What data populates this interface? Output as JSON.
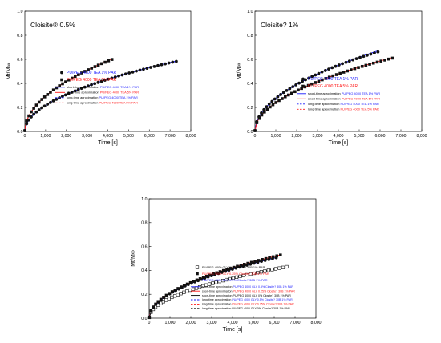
{
  "colors": {
    "blue": "#1a1aff",
    "red": "#ff1a1a",
    "black": "#000000"
  },
  "chart_data": [
    {
      "type": "scatter",
      "title": "Cloisite® 0.5%",
      "xlabel": "Time [s]",
      "ylabel": "Mt/M∞",
      "xlim": [
        0,
        8000
      ],
      "ylim": [
        0,
        1.0
      ],
      "xticks": [
        0,
        1000,
        2000,
        3000,
        4000,
        5000,
        6000,
        7000,
        8000
      ],
      "xtick_labels": [
        "0",
        "1,000",
        "2,000",
        "3,000",
        "4,000",
        "5,000",
        "6,000",
        "7,000",
        "8,000"
      ],
      "yticks": [
        0,
        0.2,
        0.4,
        0.6,
        0.8,
        1.0
      ],
      "ytick_labels": [
        "0.0",
        "0.2",
        "0.4",
        "0.6",
        "0.8",
        "1.0"
      ],
      "legend": [
        {
          "text": "PU/PEG 4000 TEA 1% PAR",
          "color": "#1a1aff",
          "marker": "circle"
        },
        {
          "text": "PU/PEG 4000 TEA 5% PAR",
          "color": "#ff1a1a",
          "marker": "square"
        },
        {
          "prefix": "short-time aproximation ",
          "text": "PU/PEG 4000 TEA 1% PAR",
          "color": "#1a1aff",
          "line": "solid"
        },
        {
          "prefix": "short-time aproximation ",
          "text": "PU/PEG 4000 TEA 5% PAR",
          "color": "#ff1a1a",
          "line": "solid"
        },
        {
          "prefix": "long-time aproximation ",
          "text": "PU/PEG 4000 TEA 1% PAR",
          "color": "#1a1aff",
          "line": "dashed"
        },
        {
          "prefix": "long-time aproximation ",
          "text": "PU/PEG 4000 TEA 5% PAR",
          "color": "#ff1a1a",
          "line": "dashed"
        }
      ],
      "series": [
        {
          "marker": "circle",
          "color": "#000000",
          "D": 3.7e-05,
          "tmax": 7300,
          "n": 48
        },
        {
          "marker": "square",
          "color": "#000000",
          "D": 6.8e-05,
          "tmax": 4200,
          "n": 30
        },
        {
          "line": "solid",
          "color": "#1a1aff",
          "D": 3.7e-05,
          "fn": "short",
          "tmax": 7300
        },
        {
          "line": "solid",
          "color": "#ff1a1a",
          "D": 6.8e-05,
          "fn": "short",
          "tmax": 4200
        },
        {
          "line": "dashed",
          "color": "#1a1aff",
          "D": 3.7e-05,
          "fn": "long",
          "tmax": 7300
        },
        {
          "line": "dashed",
          "color": "#ff1a1a",
          "D": 6.8e-05,
          "fn": "long",
          "tmax": 4200
        }
      ]
    },
    {
      "type": "scatter",
      "title": "Cloisite? 1%",
      "xlabel": "Time [s]",
      "ylabel": "Mt/M∞",
      "xlim": [
        0,
        8000
      ],
      "ylim": [
        0,
        1.0
      ],
      "xticks": [
        0,
        1000,
        2000,
        3000,
        4000,
        5000,
        6000,
        7000,
        8000
      ],
      "xtick_labels": [
        "0",
        "1,000",
        "2,000",
        "3,000",
        "4,000",
        "5,000",
        "6,000",
        "7,000",
        "8,000"
      ],
      "yticks": [
        0,
        0.2,
        0.4,
        0.6,
        0.8,
        1.0
      ],
      "ytick_labels": [
        "0.0",
        "0.2",
        "0.4",
        "0.6",
        "0.8",
        "1.0"
      ],
      "legend": [
        {
          "text": "PU/PEG 4000 TEA 1% PAR",
          "color": "#1a1aff",
          "marker": "circle"
        },
        {
          "text": "PU/PEG 4000 TEA 5% PAR",
          "color": "#ff1a1a",
          "marker": "square"
        },
        {
          "prefix": "short-time aproximation ",
          "text": "PU/PEG 4000 TEA 1% PAR",
          "color": "#1a1aff",
          "line": "solid"
        },
        {
          "prefix": "short-time aproximation ",
          "text": "PU/PEG 4000 TEA 5% PAR",
          "color": "#ff1a1a",
          "line": "solid"
        },
        {
          "prefix": "long-time aproximation ",
          "text": "PU/PEG 4000 TEA 1% PAR",
          "color": "#1a1aff",
          "line": "dashed"
        },
        {
          "prefix": "long-time aproximation ",
          "text": "PU/PEG 4000 TEA 5% PAR",
          "color": "#ff1a1a",
          "line": "dashed"
        }
      ],
      "series": [
        {
          "marker": "circle",
          "color": "#000000",
          "D": 6e-05,
          "tmax": 5900,
          "n": 40
        },
        {
          "marker": "square",
          "color": "#000000",
          "D": 4.5e-05,
          "tmax": 6600,
          "n": 42
        },
        {
          "line": "solid",
          "color": "#1a1aff",
          "D": 6e-05,
          "fn": "short",
          "tmax": 5900
        },
        {
          "line": "solid",
          "color": "#ff1a1a",
          "D": 4.5e-05,
          "fn": "short",
          "tmax": 6600
        },
        {
          "line": "dashed",
          "color": "#1a1aff",
          "D": 6e-05,
          "fn": "long",
          "tmax": 5900
        },
        {
          "line": "dashed",
          "color": "#ff1a1a",
          "D": 4.5e-05,
          "fn": "long",
          "tmax": 6600
        }
      ]
    },
    {
      "type": "scatter",
      "title": "",
      "xlabel": "Time [s]",
      "ylabel": "Mt/M∞",
      "xlim": [
        0,
        8000
      ],
      "ylim": [
        0,
        1.0
      ],
      "xticks": [
        0,
        1000,
        2000,
        3000,
        4000,
        5000,
        6000,
        7000,
        8000
      ],
      "xtick_labels": [
        "0",
        "1,000",
        "2,000",
        "3,000",
        "4,000",
        "5,000",
        "6,000",
        "7,000",
        "8,000"
      ],
      "yticks": [
        0,
        0.2,
        0.4,
        0.6,
        0.8,
        1.0
      ],
      "ytick_labels": [
        "0.0",
        "0.2",
        "0.4",
        "0.6",
        "0.8",
        "1.0"
      ],
      "legend": [
        {
          "text": "PU/PEG 4000 GLY 0% Closite? 30B 1% PAR",
          "color": "#000000",
          "marker": "open-square"
        },
        {
          "text": "PU/PEG 4000 GLY 0.25% Closite? 30B 1% PAR",
          "color": "#ff1a1a",
          "marker": "square"
        },
        {
          "text": "PU/PEG 4000 GLY 0.5% Closite? 30B 1% PAR",
          "color": "#1a1aff",
          "marker": "circle"
        },
        {
          "prefix": "short-time aproximation ",
          "text": "PU/PEG 4000 GLY 0.5% Closite? 30B 1% PAR",
          "color": "#1a1aff",
          "line": "solid"
        },
        {
          "prefix": "short-time aproximation ",
          "text": "PU/PEG 4000 GLY 0.25% Closite? 30B 1% PAR",
          "color": "#ff1a1a",
          "line": "solid"
        },
        {
          "prefix": "short-time aproximation ",
          "text": "PU/PEG 4000 GLY 0% Closite? 30B 1% PAR",
          "color": "#000000",
          "line": "solid"
        },
        {
          "prefix": "long-time aproximation ",
          "text": "PU/PEG 4000 GLY 0.5% Closite? 30B 1% PAR",
          "color": "#1a1aff",
          "line": "dashed"
        },
        {
          "prefix": "long-time aproximation ",
          "text": "PU/PEG 4000 GLY 0.25% Closite? 30B 1% PAR",
          "color": "#ff1a1a",
          "line": "dashed"
        },
        {
          "prefix": "long-time aproximation ",
          "text": "PU/PEG 4000 GLY 0% Closite? 30B 1% PAR",
          "color": "#000000",
          "line": "dashed"
        }
      ],
      "series": [
        {
          "marker": "open-square",
          "color": "#000000",
          "D": 2.2e-05,
          "tmax": 6600,
          "n": 44
        },
        {
          "marker": "square",
          "color": "#000000",
          "D": 3.5e-05,
          "tmax": 6300,
          "n": 42
        },
        {
          "marker": "circle",
          "color": "#000000",
          "D": 3.3e-05,
          "tmax": 6100,
          "n": 40
        },
        {
          "line": "solid",
          "color": "#1a1aff",
          "D": 3.3e-05,
          "fn": "short",
          "tmax": 6100
        },
        {
          "line": "solid",
          "color": "#ff1a1a",
          "D": 3.5e-05,
          "fn": "short",
          "tmax": 6300
        },
        {
          "line": "solid",
          "color": "#000000",
          "D": 2.2e-05,
          "fn": "short",
          "tmax": 6600
        },
        {
          "line": "dashed",
          "color": "#1a1aff",
          "D": 3.3e-05,
          "fn": "long",
          "tmax": 6100
        },
        {
          "line": "dashed",
          "color": "#ff1a1a",
          "D": 3.5e-05,
          "fn": "long",
          "tmax": 6300
        },
        {
          "line": "dashed",
          "color": "#000000",
          "D": 2.2e-05,
          "fn": "long",
          "tmax": 6600
        }
      ]
    }
  ]
}
